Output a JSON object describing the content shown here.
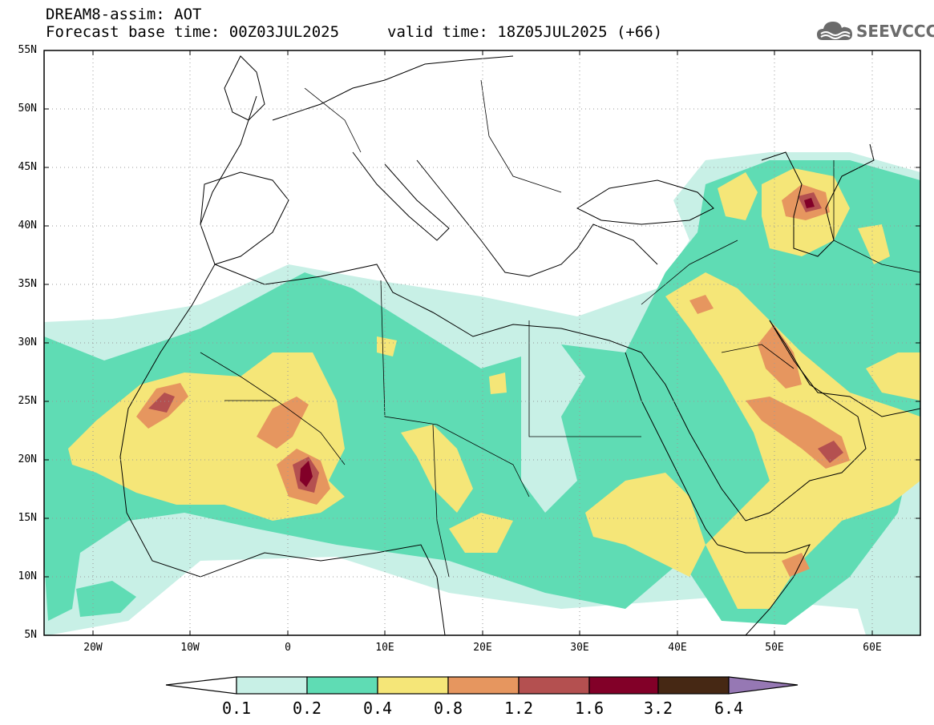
{
  "title": {
    "product": "DREAM8-assim: AOT",
    "base_time": "Forecast base time: 00Z03JUL2025",
    "valid_time": "valid time: 18Z05JUL2025 (+66)"
  },
  "logo": {
    "text": "SEEVCCC",
    "icon": "cloud-icon"
  },
  "axes": {
    "lat_ticks": [
      "55N",
      "50N",
      "45N",
      "40N",
      "35N",
      "30N",
      "25N",
      "20N",
      "15N",
      "10N",
      "5N"
    ],
    "lon_ticks": [
      "20W",
      "10W",
      "0",
      "10E",
      "20E",
      "30E",
      "40E",
      "50E",
      "60E"
    ],
    "lat_range": [
      5,
      55
    ],
    "lon_range": [
      -25,
      65
    ]
  },
  "colorbar": {
    "labels": [
      "0.1",
      "0.2",
      "0.4",
      "0.8",
      "1.2",
      "1.6",
      "3.2",
      "6.4"
    ],
    "colors": [
      "#c8f0e6",
      "#5fdcb4",
      "#f5e678",
      "#e6965f",
      "#b45050",
      "#820028",
      "#462814",
      "#9678b4"
    ]
  }
}
